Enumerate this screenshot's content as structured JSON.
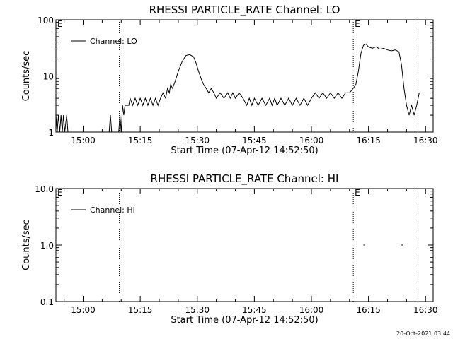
{
  "footer": {
    "timestamp": "20-Oct-2021 03:44"
  },
  "chart_data": [
    {
      "type": "line",
      "title": "RHESSI PARTICLE_RATE Channel: LO",
      "xlabel": "Start Time (07-Apr-12 14:52:50)",
      "ylabel": "Counts/sec",
      "yscale": "log",
      "ylim": [
        1,
        100
      ],
      "xlim": [
        "14:52:50",
        "16:32:00"
      ],
      "x_ticks": [
        "15:00",
        "15:15",
        "15:30",
        "15:45",
        "16:00",
        "16:15",
        "16:30"
      ],
      "y_ticks": [
        "1",
        "10",
        "100"
      ],
      "legend": {
        "position": "top-left",
        "entries": [
          "Channel: LO"
        ]
      },
      "markers": [
        {
          "time": "15:09:30",
          "label": ""
        },
        {
          "time": "16:11:00",
          "label": "E"
        },
        {
          "time": "16:28:00",
          "label": ""
        }
      ],
      "corner_label": "E",
      "grid": false,
      "series": [
        {
          "name": "Channel: LO",
          "color": "#000000",
          "points": [
            [
              "14:52:50",
              2
            ],
            [
              "14:53:10",
              1
            ],
            [
              "14:53:30",
              2
            ],
            [
              "14:53:50",
              1
            ],
            [
              "14:54:10",
              2
            ],
            [
              "14:54:30",
              1
            ],
            [
              "14:54:50",
              2
            ],
            [
              "14:55:10",
              1
            ],
            [
              "14:55:40",
              2
            ],
            [
              "14:56:00",
              1
            ],
            [
              "15:06:50",
              1
            ],
            [
              "15:07:10",
              2
            ],
            [
              "15:07:30",
              1
            ],
            [
              "15:09:20",
              1
            ],
            [
              "15:09:40",
              2
            ],
            [
              "15:10:00",
              1
            ],
            [
              "15:10:20",
              3
            ],
            [
              "15:10:40",
              2
            ],
            [
              "15:11:00",
              3
            ],
            [
              "15:12:00",
              3
            ],
            [
              "15:12:20",
              4
            ],
            [
              "15:13:00",
              3
            ],
            [
              "15:13:40",
              4
            ],
            [
              "15:14:20",
              3
            ],
            [
              "15:15:00",
              4
            ],
            [
              "15:15:40",
              3
            ],
            [
              "15:16:20",
              4
            ],
            [
              "15:17:00",
              3
            ],
            [
              "15:17:40",
              4
            ],
            [
              "15:18:20",
              3
            ],
            [
              "15:19:00",
              4
            ],
            [
              "15:19:40",
              3
            ],
            [
              "15:20:20",
              4
            ],
            [
              "15:21:00",
              5
            ],
            [
              "15:21:40",
              4
            ],
            [
              "15:22:10",
              6
            ],
            [
              "15:22:40",
              5
            ],
            [
              "15:23:00",
              7
            ],
            [
              "15:23:30",
              6
            ],
            [
              "15:24:10",
              8
            ],
            [
              "15:25:00",
              12
            ],
            [
              "15:26:00",
              18
            ],
            [
              "15:27:00",
              23
            ],
            [
              "15:28:00",
              24
            ],
            [
              "15:29:00",
              22
            ],
            [
              "15:29:40",
              17
            ],
            [
              "15:30:20",
              12
            ],
            [
              "15:31:00",
              9
            ],
            [
              "15:31:40",
              7
            ],
            [
              "15:32:20",
              6
            ],
            [
              "15:33:00",
              5
            ],
            [
              "15:33:40",
              6
            ],
            [
              "15:34:20",
              5
            ],
            [
              "15:35:00",
              4
            ],
            [
              "15:36:00",
              5
            ],
            [
              "15:37:00",
              4
            ],
            [
              "15:38:00",
              5
            ],
            [
              "15:38:40",
              4
            ],
            [
              "15:39:20",
              5
            ],
            [
              "15:40:00",
              4
            ],
            [
              "15:41:00",
              5
            ],
            [
              "15:42:00",
              4
            ],
            [
              "15:43:00",
              3
            ],
            [
              "15:43:40",
              4
            ],
            [
              "15:44:20",
              3
            ],
            [
              "15:45:00",
              4
            ],
            [
              "15:46:00",
              3
            ],
            [
              "15:47:00",
              4
            ],
            [
              "15:48:00",
              3
            ],
            [
              "15:49:00",
              4
            ],
            [
              "15:49:40",
              3
            ],
            [
              "15:50:20",
              4
            ],
            [
              "15:51:00",
              3
            ],
            [
              "15:52:00",
              4
            ],
            [
              "15:53:00",
              3
            ],
            [
              "15:54:00",
              4
            ],
            [
              "15:55:00",
              3
            ],
            [
              "15:56:00",
              4
            ],
            [
              "15:57:00",
              3
            ],
            [
              "15:58:00",
              4
            ],
            [
              "15:59:00",
              3
            ],
            [
              "16:00:00",
              4
            ],
            [
              "16:01:00",
              5
            ],
            [
              "16:02:00",
              4
            ],
            [
              "16:03:00",
              5
            ],
            [
              "16:04:00",
              4
            ],
            [
              "16:05:00",
              5
            ],
            [
              "16:06:00",
              4
            ],
            [
              "16:07:00",
              5
            ],
            [
              "16:08:00",
              4
            ],
            [
              "16:09:00",
              5
            ],
            [
              "16:10:00",
              5
            ],
            [
              "16:11:00",
              6
            ],
            [
              "16:11:40",
              7
            ],
            [
              "16:12:20",
              12
            ],
            [
              "16:13:00",
              25
            ],
            [
              "16:13:40",
              35
            ],
            [
              "16:14:20",
              37
            ],
            [
              "16:15:00",
              33
            ],
            [
              "16:16:00",
              31
            ],
            [
              "16:17:00",
              33
            ],
            [
              "16:18:00",
              30
            ],
            [
              "16:19:00",
              31
            ],
            [
              "16:20:00",
              29
            ],
            [
              "16:21:00",
              28
            ],
            [
              "16:22:00",
              29
            ],
            [
              "16:23:00",
              27
            ],
            [
              "16:23:40",
              16
            ],
            [
              "16:24:20",
              6
            ],
            [
              "16:25:00",
              3
            ],
            [
              "16:25:40",
              2
            ],
            [
              "16:26:20",
              3
            ],
            [
              "16:27:00",
              2
            ],
            [
              "16:27:40",
              3
            ],
            [
              "16:28:20",
              5
            ]
          ]
        }
      ]
    },
    {
      "type": "line",
      "title": "RHESSI PARTICLE_RATE Channel: HI",
      "xlabel": "Start Time (07-Apr-12 14:52:50)",
      "ylabel": "Counts/sec",
      "yscale": "log",
      "ylim": [
        0.1,
        10.0
      ],
      "xlim": [
        "14:52:50",
        "16:32:00"
      ],
      "x_ticks": [
        "15:00",
        "15:15",
        "15:30",
        "15:45",
        "16:00",
        "16:15",
        "16:30"
      ],
      "y_ticks": [
        "0.1",
        "1.0",
        "10.0"
      ],
      "legend": {
        "position": "top-left",
        "entries": [
          "Channel: HI"
        ]
      },
      "markers": [
        {
          "time": "15:09:30",
          "label": ""
        },
        {
          "time": "16:11:00",
          "label": "E"
        },
        {
          "time": "16:28:00",
          "label": ""
        }
      ],
      "corner_label": "E",
      "grid": false,
      "series": [
        {
          "name": "Channel: HI",
          "color": "#000000",
          "points": [
            [
              "16:13:40",
              1.0
            ],
            [
              "16:23:40",
              1.0
            ]
          ]
        }
      ]
    }
  ]
}
